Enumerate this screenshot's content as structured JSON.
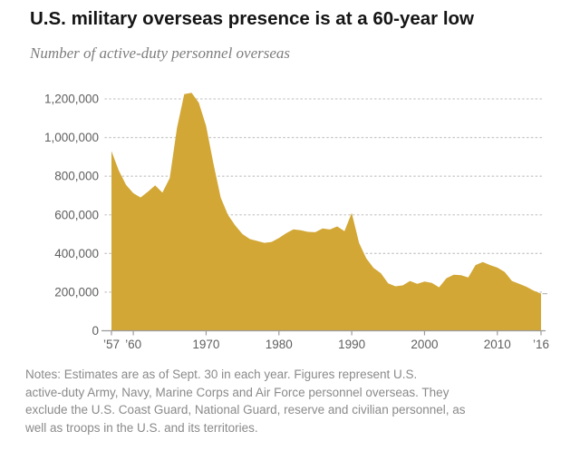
{
  "header": {
    "title": "U.S. military overseas presence is at a 60-year low",
    "subtitle": "Number of active-duty personnel overseas"
  },
  "chart_data": {
    "type": "area",
    "title": "U.S. military overseas presence is at a 60-year low",
    "subtitle": "Number of active-duty personnel overseas",
    "xlabel": "",
    "ylabel": "Number of active-duty personnel overseas",
    "xlim": [
      1957,
      2016
    ],
    "ylim": [
      0,
      1200000
    ],
    "grid": "dotted-horizontal",
    "legend": "none",
    "area_color": "#d2a736",
    "axis_color": "#9b9b9b",
    "grid_color": "#c9c9c9",
    "years": [
      1957,
      1958,
      1959,
      1960,
      1961,
      1962,
      1963,
      1964,
      1965,
      1966,
      1967,
      1968,
      1969,
      1970,
      1971,
      1972,
      1973,
      1974,
      1975,
      1976,
      1977,
      1978,
      1979,
      1980,
      1981,
      1982,
      1983,
      1984,
      1985,
      1986,
      1987,
      1988,
      1989,
      1990,
      1991,
      1992,
      1993,
      1994,
      1995,
      1996,
      1997,
      1998,
      1999,
      2000,
      2001,
      2002,
      2003,
      2004,
      2005,
      2006,
      2007,
      2008,
      2009,
      2010,
      2011,
      2012,
      2013,
      2014,
      2015,
      2016
    ],
    "values": [
      930000,
      830000,
      755000,
      712000,
      690000,
      720000,
      753000,
      715000,
      790000,
      1050000,
      1225000,
      1232000,
      1180000,
      1060000,
      865000,
      690000,
      600000,
      545000,
      500000,
      475000,
      465000,
      455000,
      460000,
      480000,
      505000,
      525000,
      520000,
      512000,
      510000,
      530000,
      524000,
      540000,
      515000,
      610000,
      455000,
      375000,
      325000,
      298000,
      245000,
      230000,
      235000,
      258000,
      243000,
      255000,
      248000,
      225000,
      272000,
      290000,
      288000,
      276000,
      340000,
      356000,
      340000,
      327000,
      305000,
      258000,
      243000,
      228000,
      207000,
      192000
    ],
    "y_ticks": [
      {
        "value": 0,
        "label": "0"
      },
      {
        "value": 200000,
        "label": "200,000"
      },
      {
        "value": 400000,
        "label": "400,000"
      },
      {
        "value": 600000,
        "label": "600,000"
      },
      {
        "value": 800000,
        "label": "800,000"
      },
      {
        "value": 1000000,
        "label": "1,000,000"
      },
      {
        "value": 1200000,
        "label": "1,200,000"
      }
    ],
    "x_ticks": [
      {
        "year": 1957,
        "label": "’57"
      },
      {
        "year": 1960,
        "label": "’60"
      },
      {
        "year": 1970,
        "label": "1970"
      },
      {
        "year": 1980,
        "label": "1980"
      },
      {
        "year": 1990,
        "label": "1990"
      },
      {
        "year": 2000,
        "label": "2000"
      },
      {
        "year": 2010,
        "label": "2010"
      },
      {
        "year": 2016,
        "label": "’16"
      }
    ]
  },
  "notes": {
    "lines": [
      "Notes: Estimates are as of Sept. 30 in each year. Figures represent U.S.",
      "active-duty Army, Navy, Marine Corps and Air Force personnel overseas. They",
      "exclude the U.S. Coast Guard, National Guard, reserve and civilian personnel, as",
      "well as troops in the U.S. and its territories."
    ]
  }
}
